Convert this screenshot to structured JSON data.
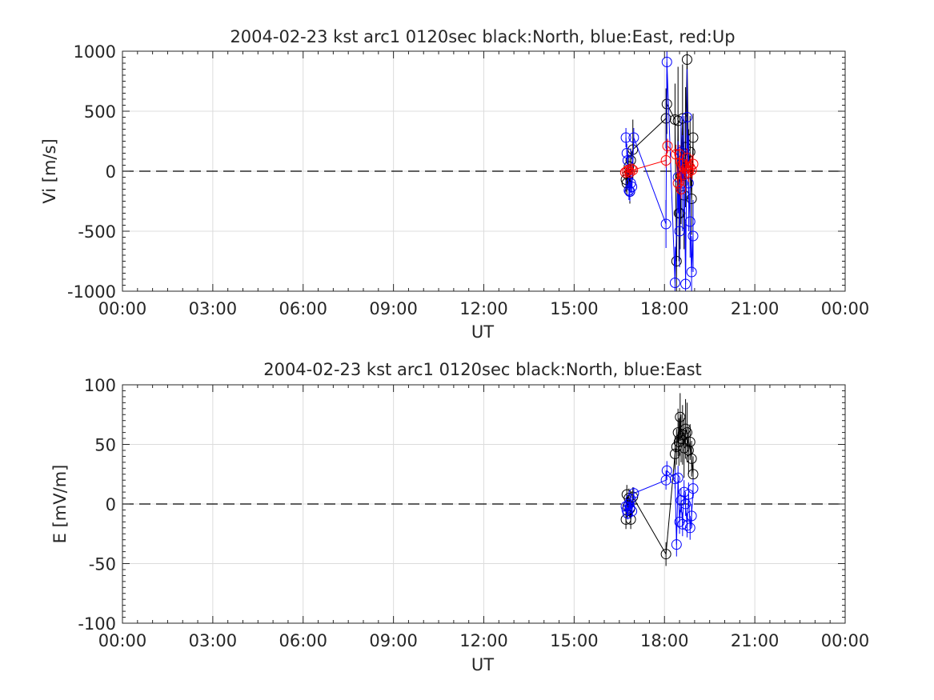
{
  "chart_data": [
    {
      "type": "scatter",
      "title": "2004-02-23 kst arc1 0120sec black:North, blue:East, red:Up",
      "xlabel": "UT",
      "ylabel": "Vi [m/s]",
      "xlim": [
        0,
        24
      ],
      "ylim": [
        -1000,
        1000
      ],
      "xticks": [
        0,
        3,
        6,
        9,
        12,
        15,
        18,
        21,
        24
      ],
      "xtick_labels": [
        "00:00",
        "03:00",
        "06:00",
        "09:00",
        "12:00",
        "15:00",
        "18:00",
        "21:00",
        "00:00"
      ],
      "yticks": [
        1000,
        500,
        0,
        -500,
        -1000
      ],
      "ytick_labels": [
        "1000",
        "500",
        "0",
        "-500",
        "-1000"
      ],
      "grid": true,
      "zero_line": true,
      "series": [
        {
          "color": "#000000",
          "x": [
            16.72,
            16.75,
            16.78,
            16.82,
            16.85,
            16.88,
            16.95,
            18.05,
            18.08,
            18.35,
            18.4,
            18.45,
            18.48,
            18.52,
            18.55,
            18.6,
            18.65,
            18.7,
            18.75,
            18.8,
            18.85,
            18.9,
            18.95
          ],
          "y": [
            -70,
            -100,
            -30,
            40,
            -170,
            90,
            180,
            440,
            560,
            430,
            -750,
            420,
            -350,
            -350,
            -40,
            440,
            -200,
            200,
            930,
            50,
            160,
            -230,
            280
          ],
          "err": [
            100,
            100,
            100,
            100,
            100,
            100,
            250,
            250,
            250,
            300,
            400,
            450,
            400,
            300,
            400,
            450,
            450,
            500,
            900,
            300,
            300,
            300,
            200
          ]
        },
        {
          "color": "#0000ff",
          "x": [
            16.72,
            16.75,
            16.78,
            16.82,
            16.85,
            16.88,
            16.92,
            16.98,
            18.05,
            18.08,
            18.35,
            18.45,
            18.5,
            18.55,
            18.6,
            18.65,
            18.7,
            18.75,
            18.8,
            18.85,
            18.9,
            18.95
          ],
          "y": [
            280,
            150,
            90,
            -160,
            -170,
            -100,
            -130,
            280,
            -440,
            910,
            -930,
            -50,
            -500,
            160,
            -100,
            60,
            -940,
            450,
            -100,
            -420,
            -840,
            -540
          ],
          "err": [
            80,
            80,
            80,
            80,
            80,
            80,
            80,
            80,
            200,
            300,
            300,
            300,
            300,
            300,
            400,
            400,
            500,
            400,
            400,
            300,
            300,
            300
          ]
        },
        {
          "color": "#ff0000",
          "x": [
            16.7,
            16.75,
            16.8,
            16.85,
            16.9,
            16.95,
            18.05,
            18.1,
            18.38,
            18.45,
            18.5,
            18.55,
            18.6,
            18.65,
            18.7,
            18.75,
            18.8,
            18.85,
            18.9,
            18.95
          ],
          "y": [
            -10,
            0,
            10,
            -10,
            20,
            10,
            90,
            210,
            140,
            -100,
            140,
            -150,
            60,
            -30,
            20,
            110,
            -10,
            30,
            10,
            60
          ],
          "err": [
            30,
            30,
            30,
            30,
            30,
            30,
            60,
            60,
            80,
            80,
            80,
            80,
            80,
            80,
            80,
            80,
            80,
            80,
            80,
            80
          ]
        }
      ]
    },
    {
      "type": "scatter",
      "title": "2004-02-23 kst arc1 0120sec black:North, blue:East",
      "xlabel": "UT",
      "ylabel": "E [mV/m]",
      "xlim": [
        0,
        24
      ],
      "ylim": [
        -100,
        100
      ],
      "xticks": [
        0,
        3,
        6,
        9,
        12,
        15,
        18,
        21,
        24
      ],
      "xtick_labels": [
        "00:00",
        "03:00",
        "06:00",
        "09:00",
        "12:00",
        "15:00",
        "18:00",
        "21:00",
        "00:00"
      ],
      "yticks": [
        100,
        50,
        0,
        -50,
        -100
      ],
      "ytick_labels": [
        "100",
        "50",
        "0",
        "-50",
        "-100"
      ],
      "grid": true,
      "zero_line": true,
      "series": [
        {
          "color": "#000000",
          "x": [
            16.72,
            16.75,
            16.78,
            16.82,
            16.85,
            16.88,
            16.95,
            18.05,
            18.35,
            18.4,
            18.45,
            18.48,
            18.52,
            18.55,
            18.6,
            18.65,
            18.7,
            18.75,
            18.8,
            18.85,
            18.9,
            18.95
          ],
          "y": [
            -13,
            8,
            -2,
            5,
            -4,
            -13,
            6,
            -42,
            42,
            48,
            60,
            52,
            73,
            55,
            58,
            47,
            63,
            60,
            45,
            52,
            38,
            25
          ],
          "err": [
            8,
            8,
            8,
            8,
            8,
            8,
            8,
            10,
            15,
            15,
            20,
            20,
            20,
            20,
            25,
            25,
            25,
            25,
            20,
            15,
            15,
            15
          ]
        },
        {
          "color": "#0000ff",
          "x": [
            16.72,
            16.75,
            16.78,
            16.82,
            16.85,
            16.88,
            16.92,
            16.98,
            18.05,
            18.08,
            18.35,
            18.4,
            18.45,
            18.5,
            18.55,
            18.6,
            18.65,
            18.7,
            18.75,
            18.8,
            18.85,
            18.9,
            18.95
          ],
          "y": [
            -2,
            -5,
            -8,
            0,
            -3,
            4,
            -6,
            9,
            20,
            28,
            21,
            -34,
            22,
            -15,
            3,
            -17,
            10,
            0,
            -18,
            8,
            -20,
            -10,
            13
          ],
          "err": [
            5,
            5,
            5,
            5,
            5,
            5,
            5,
            5,
            8,
            8,
            8,
            10,
            10,
            10,
            10,
            10,
            10,
            10,
            10,
            10,
            10,
            10,
            8
          ]
        }
      ]
    }
  ]
}
